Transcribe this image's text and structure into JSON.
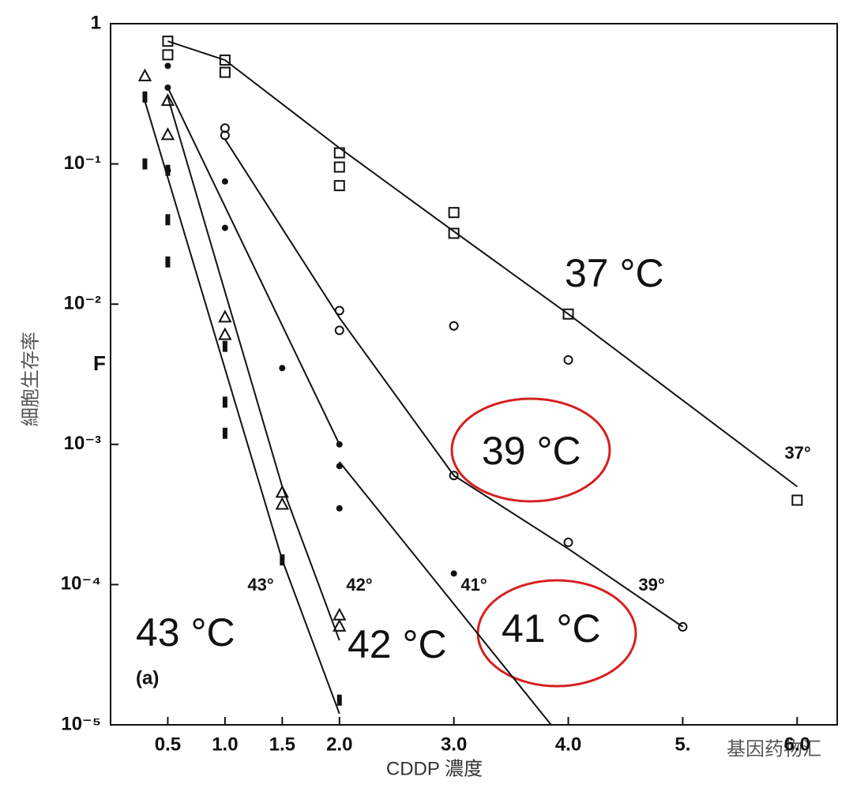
{
  "chart_data": {
    "type": "scatter",
    "log_y": true,
    "xlabel": "CDDP 濃度",
    "ylabel": "細胞生存率",
    "y_axis_letter": "F",
    "xlim": [
      0,
      6.35
    ],
    "ylim": [
      1e-05,
      1
    ],
    "xticks": [
      0.5,
      {
        "value": 1,
        "label": "1.0"
      },
      1.5,
      {
        "value": 2,
        "label": "2.0"
      },
      {
        "value": 3,
        "label": "3.0"
      },
      {
        "value": 4,
        "label": "4.0"
      },
      {
        "value": 5,
        "label": "5."
      },
      {
        "value": 6,
        "label": "6.0"
      }
    ],
    "yticks": [
      1,
      {
        "value": 0.1,
        "label": "10⁻¹"
      },
      {
        "value": 0.01,
        "label": "10⁻²"
      },
      {
        "value": 0.001,
        "label": "10⁻³"
      },
      {
        "value": 0.0001,
        "label": "10⁻⁴"
      },
      {
        "value": 1e-05,
        "label": "10⁻⁵"
      }
    ],
    "series": [
      {
        "name": "37°",
        "marker": "square",
        "color": "#111",
        "x": [
          0.5,
          0.5,
          1,
          1,
          2,
          2,
          2,
          3,
          3,
          4,
          6
        ],
        "values": [
          0.75,
          0.6,
          0.55,
          0.45,
          0.12,
          0.095,
          0.07,
          0.045,
          0.032,
          0.0085,
          0.0004
        ],
        "line_x": [
          0.5,
          1,
          2,
          3,
          4,
          6
        ],
        "line_y": [
          0.75,
          0.55,
          0.13,
          0.033,
          0.0085,
          0.0005
        ]
      },
      {
        "name": "39°",
        "marker": "circle",
        "color": "#111",
        "x": [
          1,
          1,
          2,
          2,
          3,
          3,
          4,
          4,
          5
        ],
        "values": [
          0.18,
          0.16,
          0.009,
          0.0065,
          0.007,
          0.0006,
          0.004,
          0.0002,
          5e-05
        ],
        "line_x": [
          1,
          2,
          3,
          4,
          5
        ],
        "line_y": [
          0.15,
          0.008,
          0.0006,
          0.00018,
          5e-05
        ]
      },
      {
        "name": "41°",
        "marker": "dot",
        "color": "#111",
        "x": [
          0.5,
          0.5,
          0.5,
          1,
          1,
          1.5,
          2,
          2,
          2,
          3
        ],
        "values": [
          0.5,
          0.35,
          0.09,
          0.075,
          0.035,
          0.0035,
          0.001,
          0.0007,
          0.00035,
          0.00012
        ],
        "line_x": [
          0.5,
          2,
          null,
          2,
          3.85
        ],
        "line_y": [
          0.35,
          0.001,
          null,
          0.00075,
          1e-05
        ]
      },
      {
        "name": "42°",
        "marker": "triangle",
        "color": "#111",
        "x": [
          0.3,
          0.5,
          0.5,
          1,
          1,
          1.5,
          1.5,
          2,
          2
        ],
        "values": [
          0.42,
          0.28,
          0.16,
          0.008,
          0.006,
          0.00045,
          0.00037,
          6e-05,
          5e-05
        ],
        "line_x": [
          0.5,
          1.5,
          2
        ],
        "line_y": [
          0.3,
          0.0005,
          4e-05
        ]
      },
      {
        "name": "43°",
        "marker": "bar",
        "color": "#111",
        "x": [
          0.3,
          0.3,
          0.5,
          0.5,
          0.5,
          1,
          1,
          1,
          1.5,
          2
        ],
        "values": [
          0.3,
          0.1,
          0.09,
          0.04,
          0.02,
          0.005,
          0.002,
          0.0012,
          0.00015,
          1.5e-05
        ],
        "line_x": [
          0.3,
          1.5,
          2
        ],
        "line_y": [
          0.28,
          0.00015,
          1.2e-05
        ]
      }
    ],
    "annotations": [
      "37 °C",
      "39 °C",
      "41 °C",
      "42 °C",
      "43 °C",
      "(a)"
    ],
    "watermark": "基因药物汇"
  }
}
